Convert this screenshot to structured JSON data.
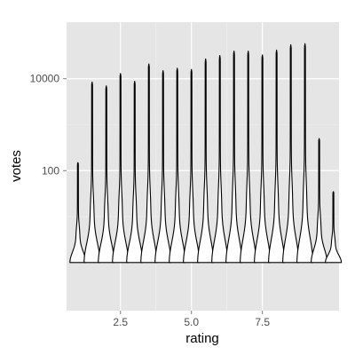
{
  "chart_data": {
    "type": "violin",
    "title": "",
    "xlabel": "rating",
    "ylabel": "votes",
    "x_scale": "linear",
    "y_scale": "log10",
    "xlim": [
      0.6,
      10.2
    ],
    "ylim": [
      0.09,
      170000
    ],
    "x_ticks": [
      2.5,
      5.0,
      7.5
    ],
    "x_tick_labels": [
      "2.5",
      "5.0",
      "7.5"
    ],
    "y_ticks": [
      100,
      10000
    ],
    "y_tick_labels": [
      "100",
      "10000"
    ],
    "grid": true,
    "legend": "none",
    "colors": {
      "panel": "#e5e5e5",
      "grid_major": "#ffffff",
      "grid_minor": "#f2f2f2",
      "outline": "#000000",
      "fill": "#ffffff"
    },
    "violins": [
      {
        "x": 1.0,
        "min": 1,
        "max": 150
      },
      {
        "x": 1.5,
        "min": 1,
        "max": 8500
      },
      {
        "x": 2.0,
        "min": 1,
        "max": 7000
      },
      {
        "x": 2.5,
        "min": 1,
        "max": 13000
      },
      {
        "x": 3.0,
        "min": 1,
        "max": 8800
      },
      {
        "x": 3.5,
        "min": 1,
        "max": 21000
      },
      {
        "x": 4.0,
        "min": 1,
        "max": 15000
      },
      {
        "x": 4.5,
        "min": 1,
        "max": 17000
      },
      {
        "x": 5.0,
        "min": 1,
        "max": 16000
      },
      {
        "x": 5.5,
        "min": 1,
        "max": 27000
      },
      {
        "x": 6.0,
        "min": 1,
        "max": 32000
      },
      {
        "x": 6.5,
        "min": 1,
        "max": 40000
      },
      {
        "x": 7.0,
        "min": 1,
        "max": 40000
      },
      {
        "x": 7.5,
        "min": 1,
        "max": 33000
      },
      {
        "x": 8.0,
        "min": 1,
        "max": 42000
      },
      {
        "x": 8.5,
        "min": 1,
        "max": 55000
      },
      {
        "x": 9.0,
        "min": 1,
        "max": 58000
      },
      {
        "x": 9.5,
        "min": 1,
        "max": 500
      },
      {
        "x": 10.0,
        "min": 1,
        "max": 35
      }
    ]
  }
}
